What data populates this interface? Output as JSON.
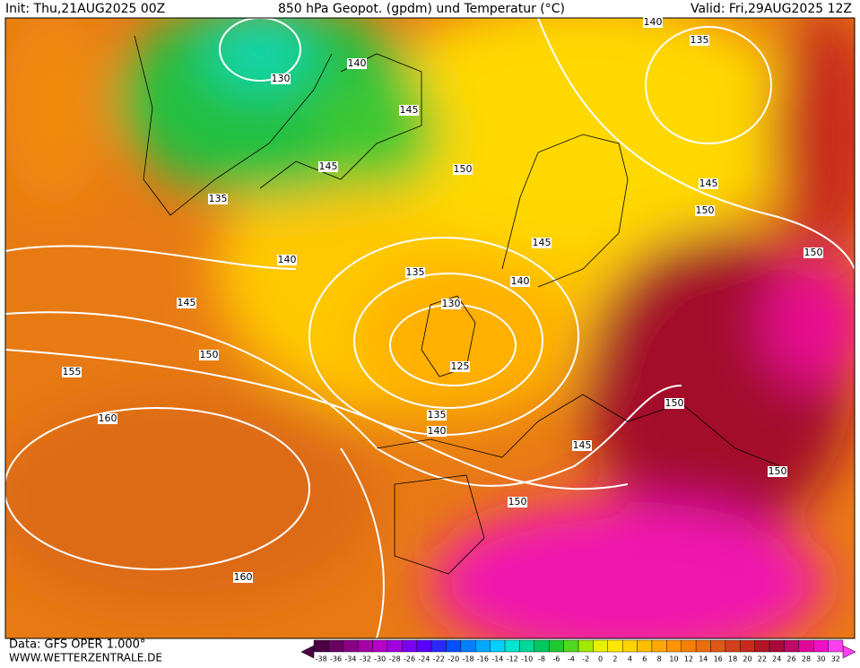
{
  "header": {
    "init": "Init: Thu,21AUG2025 00Z",
    "title": "850 hPa Geopot. (gpdm) und Temperatur (°C)",
    "valid": "Valid: Fri,29AUG2025 12Z"
  },
  "footer": {
    "data": "Data: GFS OPER 1.000°",
    "site": "WWW.WETTERZENTRALE.DE"
  },
  "contour_labels": [
    140,
    135,
    130,
    140,
    145,
    150,
    145,
    135,
    145,
    150,
    145,
    140,
    135,
    140,
    130,
    145,
    150,
    150,
    155,
    125,
    160,
    135,
    140,
    145,
    150,
    150,
    150,
    160
  ],
  "colorbar": {
    "labels": [
      -38,
      -36,
      -34,
      -32,
      -30,
      -28,
      -26,
      -24,
      -22,
      -20,
      -18,
      -16,
      -14,
      -12,
      -10,
      -8,
      -6,
      -4,
      -2,
      0,
      2,
      4,
      6,
      8,
      10,
      12,
      14,
      16,
      18,
      20,
      22,
      24,
      26,
      28,
      30,
      32
    ],
    "colors": [
      "#4b0042",
      "#6a0063",
      "#8a0085",
      "#a600a6",
      "#b400c8",
      "#a000e0",
      "#7a00f0",
      "#5a00ff",
      "#2a2aff",
      "#0050ff",
      "#0080ff",
      "#00a8ff",
      "#00d0ff",
      "#00e6d0",
      "#00d898",
      "#00c860",
      "#20c830",
      "#50d820",
      "#a0e800",
      "#e8f000",
      "#ffe800",
      "#ffd400",
      "#ffbe00",
      "#ffa800",
      "#ff9400",
      "#f58000",
      "#ec6c10",
      "#e05818",
      "#d4401c",
      "#c82a1e",
      "#b41424",
      "#a8083a",
      "#c00866",
      "#e0089a",
      "#f010c8",
      "#ff40f0"
    ]
  }
}
